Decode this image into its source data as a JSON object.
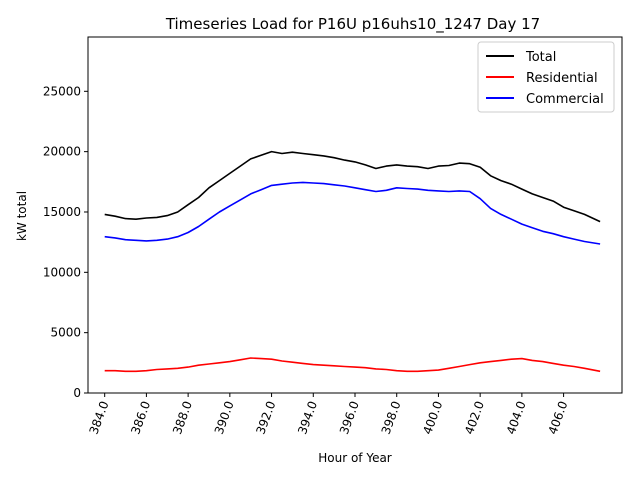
{
  "chart_data": {
    "type": "line",
    "title": "Timeseries Load for P16U p16uhs10_1247  Day 17",
    "xlabel": "Hour of Year",
    "ylabel": "kW total",
    "xlim": [
      383.2,
      408.8
    ],
    "ylim": [
      0,
      29500
    ],
    "x_ticks": [
      "384.0",
      "386.0",
      "388.0",
      "390.0",
      "392.0",
      "394.0",
      "396.0",
      "398.0",
      "400.0",
      "402.0",
      "404.0",
      "406.0"
    ],
    "y_ticks": [
      "0",
      "5000",
      "10000",
      "15000",
      "20000",
      "25000"
    ],
    "legend_position": "top-right",
    "x": [
      384,
      384.5,
      385,
      385.5,
      386,
      386.5,
      387,
      387.5,
      388,
      388.5,
      389,
      389.5,
      390,
      390.5,
      391,
      391.5,
      392,
      392.5,
      393,
      393.5,
      394,
      394.5,
      395,
      395.5,
      396,
      396.5,
      397,
      397.5,
      398,
      398.5,
      399,
      399.5,
      400,
      400.5,
      401,
      401.5,
      402,
      402.5,
      403,
      403.5,
      404,
      404.5,
      405,
      405.5,
      406,
      406.5,
      407,
      407.75
    ],
    "series": [
      {
        "name": "Total",
        "color": "#000000",
        "values": [
          14800,
          14650,
          14450,
          14400,
          14500,
          14550,
          14700,
          15000,
          15600,
          16200,
          17000,
          17600,
          18200,
          18800,
          19400,
          19700,
          20000,
          19850,
          19950,
          19850,
          19750,
          19650,
          19500,
          19300,
          19150,
          18900,
          18600,
          18800,
          18900,
          18800,
          18750,
          18600,
          18800,
          18850,
          19050,
          19000,
          18700,
          18000,
          17600,
          17300,
          16900,
          16500,
          16200,
          15900,
          15400,
          15100,
          14800,
          14200
        ]
      },
      {
        "name": "Residential",
        "color": "#ff0000",
        "values": [
          1850,
          1850,
          1800,
          1800,
          1850,
          1950,
          2000,
          2050,
          2150,
          2300,
          2400,
          2500,
          2600,
          2750,
          2900,
          2850,
          2800,
          2650,
          2550,
          2450,
          2350,
          2300,
          2250,
          2200,
          2150,
          2100,
          2000,
          1950,
          1850,
          1800,
          1800,
          1850,
          1900,
          2050,
          2200,
          2350,
          2500,
          2600,
          2700,
          2800,
          2850,
          2700,
          2600,
          2450,
          2300,
          2200,
          2050,
          1800
        ]
      },
      {
        "name": "Commercial",
        "color": "#0000ff",
        "values": [
          12950,
          12850,
          12700,
          12650,
          12600,
          12650,
          12750,
          12950,
          13300,
          13800,
          14400,
          15000,
          15500,
          16000,
          16500,
          16850,
          17200,
          17300,
          17400,
          17450,
          17400,
          17350,
          17250,
          17150,
          17000,
          16850,
          16700,
          16800,
          17000,
          16950,
          16900,
          16800,
          16750,
          16700,
          16750,
          16700,
          16100,
          15300,
          14800,
          14400,
          14000,
          13700,
          13400,
          13200,
          12950,
          12750,
          12550,
          12350
        ]
      }
    ]
  }
}
